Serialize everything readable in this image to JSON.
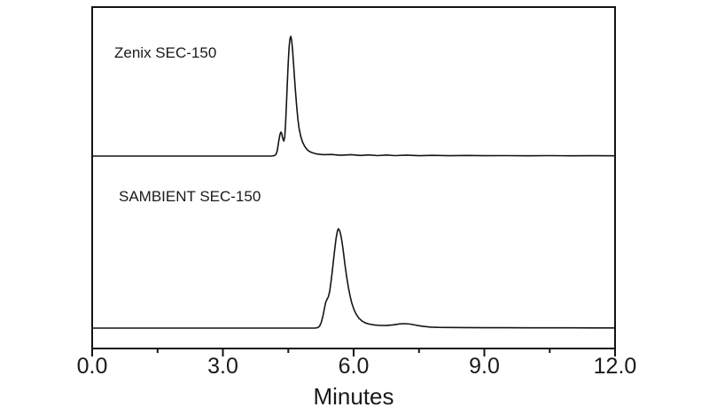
{
  "figure": {
    "background_color": "#ffffff",
    "line_color": "#141414",
    "text_color": "#1a1a1a",
    "trace_labels": [
      {
        "id": "zenix",
        "text": "Zenix SEC-150"
      },
      {
        "id": "sambient",
        "text": "SAMBIENT SEC-150"
      }
    ]
  },
  "chart_data": {
    "type": "line",
    "title": "",
    "xlabel": "Minutes",
    "ylabel": "",
    "x_range": [
      0,
      12
    ],
    "grid": false,
    "legend_position": "none",
    "x_major_ticks": [
      {
        "t": 0,
        "label": "0.0"
      },
      {
        "t": 3,
        "label": "3.0"
      },
      {
        "t": 6,
        "label": "6.0"
      },
      {
        "t": 9,
        "label": "9.0"
      },
      {
        "t": 12,
        "label": "12.0"
      }
    ],
    "x_minor_ticks": [
      1.5,
      4.5,
      7.5,
      10.5
    ],
    "series": [
      {
        "name": "Zenix SEC-150",
        "panel": "top",
        "units": "relative intensity (0-1 of peak max)",
        "points": [
          [
            0,
            0
          ],
          [
            1,
            0
          ],
          [
            2,
            0
          ],
          [
            3,
            0
          ],
          [
            3.6,
            0
          ],
          [
            4.0,
            0
          ],
          [
            4.12,
            0
          ],
          [
            4.18,
            0.004
          ],
          [
            4.22,
            0.015
          ],
          [
            4.25,
            0.05
          ],
          [
            4.28,
            0.12
          ],
          [
            4.31,
            0.18
          ],
          [
            4.33,
            0.2
          ],
          [
            4.35,
            0.19
          ],
          [
            4.37,
            0.15
          ],
          [
            4.4,
            0.125
          ],
          [
            4.42,
            0.16
          ],
          [
            4.44,
            0.28
          ],
          [
            4.46,
            0.45
          ],
          [
            4.48,
            0.63
          ],
          [
            4.5,
            0.79
          ],
          [
            4.52,
            0.91
          ],
          [
            4.54,
            0.98
          ],
          [
            4.56,
            1.0
          ],
          [
            4.58,
            0.96
          ],
          [
            4.6,
            0.88
          ],
          [
            4.63,
            0.73
          ],
          [
            4.66,
            0.57
          ],
          [
            4.69,
            0.43
          ],
          [
            4.72,
            0.31
          ],
          [
            4.75,
            0.23
          ],
          [
            4.79,
            0.16
          ],
          [
            4.83,
            0.115
          ],
          [
            4.88,
            0.08
          ],
          [
            4.93,
            0.055
          ],
          [
            4.99,
            0.038
          ],
          [
            5.06,
            0.027
          ],
          [
            5.15,
            0.018
          ],
          [
            5.3,
            0.012
          ],
          [
            5.5,
            0.013
          ],
          [
            5.7,
            0.007
          ],
          [
            5.95,
            0.012
          ],
          [
            6.15,
            0.005
          ],
          [
            6.35,
            0.01
          ],
          [
            6.55,
            0.004
          ],
          [
            6.75,
            0.009
          ],
          [
            6.95,
            0.004
          ],
          [
            7.2,
            0.008
          ],
          [
            7.5,
            0.003
          ],
          [
            7.8,
            0.006
          ],
          [
            8.2,
            0.003
          ],
          [
            8.6,
            0.005
          ],
          [
            9.0,
            0.003
          ],
          [
            9.5,
            0.004
          ],
          [
            10.0,
            0.002
          ],
          [
            10.5,
            0.004
          ],
          [
            11.0,
            0.002
          ],
          [
            11.5,
            0.003
          ],
          [
            12.0,
            0.002
          ]
        ]
      },
      {
        "name": "SAMBIENT SEC-150",
        "panel": "bottom",
        "units": "relative intensity (0-1 of peak max)",
        "points": [
          [
            0,
            0
          ],
          [
            1,
            0
          ],
          [
            2,
            0
          ],
          [
            3,
            0
          ],
          [
            4,
            0
          ],
          [
            4.6,
            0
          ],
          [
            5.0,
            0
          ],
          [
            5.12,
            0
          ],
          [
            5.18,
            0.005
          ],
          [
            5.22,
            0.02
          ],
          [
            5.26,
            0.06
          ],
          [
            5.3,
            0.13
          ],
          [
            5.33,
            0.2
          ],
          [
            5.36,
            0.26
          ],
          [
            5.39,
            0.29
          ],
          [
            5.42,
            0.315
          ],
          [
            5.45,
            0.37
          ],
          [
            5.48,
            0.46
          ],
          [
            5.51,
            0.57
          ],
          [
            5.54,
            0.69
          ],
          [
            5.57,
            0.81
          ],
          [
            5.6,
            0.91
          ],
          [
            5.63,
            0.98
          ],
          [
            5.65,
            1.0
          ],
          [
            5.68,
            0.98
          ],
          [
            5.71,
            0.93
          ],
          [
            5.74,
            0.85
          ],
          [
            5.77,
            0.75
          ],
          [
            5.8,
            0.64
          ],
          [
            5.84,
            0.52
          ],
          [
            5.88,
            0.41
          ],
          [
            5.92,
            0.32
          ],
          [
            5.96,
            0.25
          ],
          [
            6.01,
            0.185
          ],
          [
            6.06,
            0.14
          ],
          [
            6.12,
            0.1
          ],
          [
            6.19,
            0.072
          ],
          [
            6.27,
            0.052
          ],
          [
            6.36,
            0.04
          ],
          [
            6.47,
            0.032
          ],
          [
            6.6,
            0.027
          ],
          [
            6.75,
            0.026
          ],
          [
            6.9,
            0.032
          ],
          [
            7.05,
            0.042
          ],
          [
            7.18,
            0.045
          ],
          [
            7.3,
            0.04
          ],
          [
            7.45,
            0.028
          ],
          [
            7.6,
            0.017
          ],
          [
            7.78,
            0.01
          ],
          [
            7.95,
            0.007
          ],
          [
            8.2,
            0.006
          ],
          [
            8.5,
            0.005
          ],
          [
            9.0,
            0.004
          ],
          [
            9.5,
            0.004
          ],
          [
            10.0,
            0.003
          ],
          [
            10.5,
            0.003
          ],
          [
            11.0,
            0.003
          ],
          [
            11.5,
            0.002
          ],
          [
            12.0,
            0.002
          ]
        ]
      }
    ]
  }
}
